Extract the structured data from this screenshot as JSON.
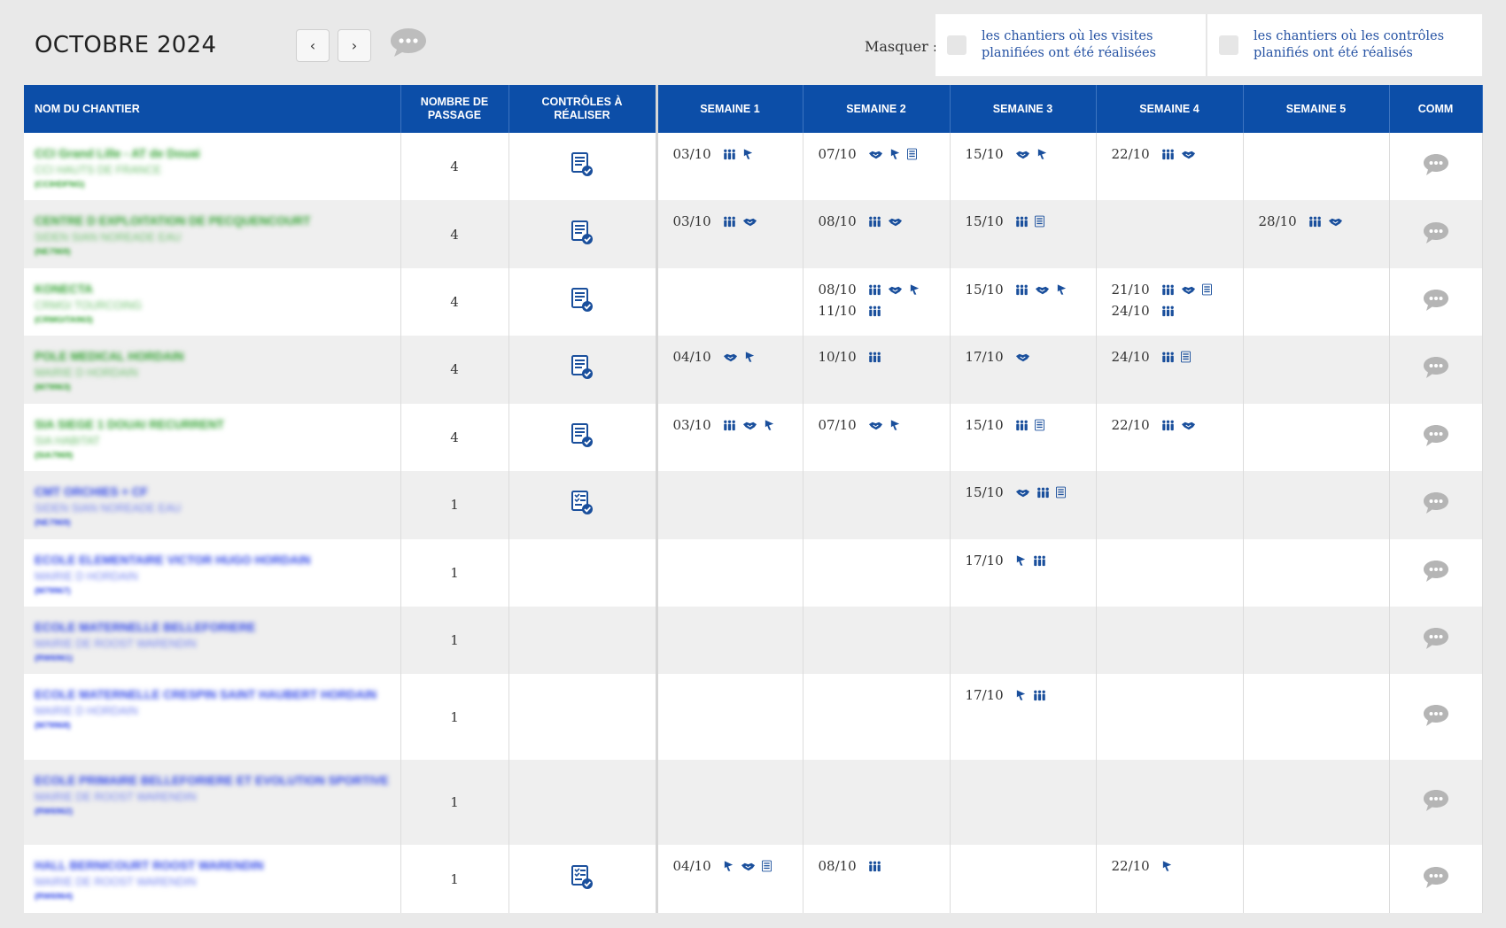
{
  "header": {
    "month_title": "OCTOBRE 2024",
    "prev_label": "‹",
    "next_label": "›",
    "comment_icon": "speech-bubble-icon",
    "masquer_label": "Masquer :",
    "filter_visits_label": "les chantiers où les visites planifiées ont été réalisées",
    "filter_controls_label": "les chantiers où les contrôles planifiés ont été réalisés"
  },
  "table": {
    "columns": [
      "NOM DU CHANTIER",
      "NOMBRE DE PASSAGE",
      "CONTRÔLES À RÉALISER",
      "SEMAINE 1",
      "SEMAINE 2",
      "SEMAINE 3",
      "SEMAINE 4",
      "SEMAINE 5",
      "COMM"
    ],
    "rows": [
      {
        "name": "CCI Grand Lille - AT de Douai",
        "client": "CCI HAUTS DE FRANCE",
        "code": "(CCIHDFNG)",
        "passages": "4",
        "controls": "list-check",
        "weeks": [
          [
            {
              "date": "03/10",
              "icons": [
                "people",
                "flag"
              ]
            }
          ],
          [
            {
              "date": "07/10",
              "icons": [
                "handshake",
                "flag",
                "list"
              ]
            }
          ],
          [
            {
              "date": "15/10",
              "icons": [
                "handshake",
                "flag"
              ]
            }
          ],
          [
            {
              "date": "22/10",
              "icons": [
                "people",
                "handshake"
              ]
            }
          ],
          []
        ]
      },
      {
        "name": "CENTRE D EXPLOITATION DE PECQUENCOURT",
        "client": "SIDEN SIAN NOREADE EAU",
        "code": "(NE7969)",
        "passages": "4",
        "controls": "list-check",
        "weeks": [
          [
            {
              "date": "03/10",
              "icons": [
                "people",
                "handshake"
              ]
            }
          ],
          [
            {
              "date": "08/10",
              "icons": [
                "people",
                "handshake"
              ]
            }
          ],
          [
            {
              "date": "15/10",
              "icons": [
                "people",
                "list"
              ]
            }
          ],
          [],
          [
            {
              "date": "28/10",
              "icons": [
                "people",
                "handshake"
              ]
            }
          ]
        ]
      },
      {
        "name": "KONECTA",
        "client": "CRMGI TOURCOING",
        "code": "(CRMGITA963)",
        "passages": "4",
        "controls": "list-check",
        "weeks": [
          [],
          [
            {
              "date": "08/10",
              "icons": [
                "people",
                "handshake",
                "flag"
              ]
            },
            {
              "date": "11/10",
              "icons": [
                "people"
              ]
            }
          ],
          [
            {
              "date": "15/10",
              "icons": [
                "people",
                "handshake",
                "flag"
              ]
            }
          ],
          [
            {
              "date": "21/10",
              "icons": [
                "people",
                "handshake",
                "list"
              ]
            },
            {
              "date": "24/10",
              "icons": [
                "people"
              ]
            }
          ],
          []
        ]
      },
      {
        "name": "POLE MEDICAL HORDAIN",
        "client": "MAIRIE D HORDAIN",
        "code": "(M79963)",
        "passages": "4",
        "controls": "list-check",
        "weeks": [
          [
            {
              "date": "04/10",
              "icons": [
                "handshake",
                "flag"
              ]
            }
          ],
          [
            {
              "date": "10/10",
              "icons": [
                "people"
              ]
            }
          ],
          [
            {
              "date": "17/10",
              "icons": [
                "handshake"
              ]
            }
          ],
          [
            {
              "date": "24/10",
              "icons": [
                "people",
                "list"
              ]
            }
          ],
          []
        ]
      },
      {
        "name": "SIA SIEGE 1 DOUAI RECURRENT",
        "client": "SIA HABITAT",
        "code": "(SIA7969)",
        "passages": "4",
        "controls": "list-check",
        "weeks": [
          [
            {
              "date": "03/10",
              "icons": [
                "people",
                "handshake",
                "flag"
              ]
            }
          ],
          [
            {
              "date": "07/10",
              "icons": [
                "handshake",
                "flag"
              ]
            }
          ],
          [
            {
              "date": "15/10",
              "icons": [
                "people",
                "list"
              ]
            }
          ],
          [
            {
              "date": "22/10",
              "icons": [
                "people",
                "handshake"
              ]
            }
          ],
          []
        ]
      },
      {
        "name": "CMT ORCHIES + CF",
        "client": "SIDEN SIAN NOREADE EAU",
        "code": "(NE7969)",
        "passages": "1",
        "controls": "list-check-alt",
        "weeks": [
          [],
          [],
          [
            {
              "date": "15/10",
              "icons": [
                "handshake",
                "people",
                "list"
              ]
            }
          ],
          [],
          []
        ]
      },
      {
        "name": "ECOLE ELEMENTAIRE VICTOR HUGO HORDAIN",
        "client": "MAIRIE D HORDAIN",
        "code": "(M79967)",
        "passages": "1",
        "controls": "",
        "weeks": [
          [],
          [],
          [
            {
              "date": "17/10",
              "icons": [
                "flag",
                "people"
              ]
            }
          ],
          [],
          []
        ]
      },
      {
        "name": "ECOLE MATERNELLE BELLEFORIERE",
        "client": "MAIRIE DE ROOST WARENDIN",
        "code": "(RW6961)",
        "passages": "1",
        "controls": "",
        "weeks": [
          [],
          [],
          [],
          [],
          []
        ]
      },
      {
        "name": "ECOLE MATERNELLE CRESPIN SAINT HAUBERT HORDAIN",
        "client": "MAIRIE D HORDAIN",
        "code": "(M79968)",
        "passages": "1",
        "controls": "",
        "weeks": [
          [],
          [],
          [
            {
              "date": "17/10",
              "icons": [
                "flag",
                "people"
              ]
            }
          ],
          [],
          []
        ]
      },
      {
        "name": "ECOLE PRIMAIRE BELLEFORIERE ET EVOLUTION SPORTIVE",
        "client": "MAIRIE DE ROOST WARENDIN",
        "code": "(RW6962)",
        "passages": "1",
        "controls": "",
        "weeks": [
          [],
          [],
          [],
          [],
          []
        ]
      },
      {
        "name": "HALL BERNICOURT ROOST WARENDIN",
        "client": "MAIRIE DE ROOST WARENDIN",
        "code": "(RW6964)",
        "passages": "1",
        "controls": "list-check-alt",
        "weeks": [
          [
            {
              "date": "04/10",
              "icons": [
                "flag",
                "handshake",
                "list"
              ]
            }
          ],
          [
            {
              "date": "08/10",
              "icons": [
                "people"
              ]
            }
          ],
          [],
          [
            {
              "date": "22/10",
              "icons": [
                "flag"
              ]
            }
          ],
          []
        ]
      }
    ]
  },
  "colors": {
    "header_blue": "#0c4ea8",
    "icon_blue": "#1a4f9c",
    "green_site": "#2ea12e",
    "blue_site": "#2f46e8",
    "comment_grey": "#b5b5b5"
  }
}
